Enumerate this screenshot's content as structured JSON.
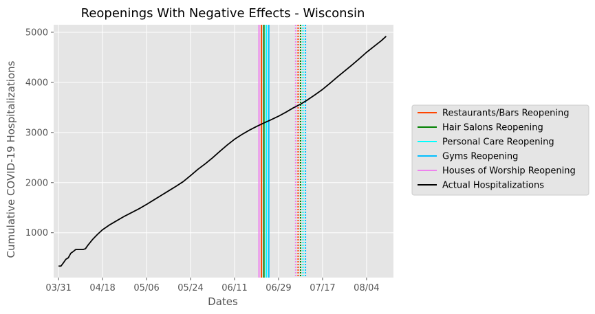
{
  "chart_data": {
    "type": "line",
    "title": "Reopenings With Negative Effects - Wisconsin",
    "xlabel": "Dates",
    "ylabel": "Cumulative COVID-19 Hospitalizations",
    "x_ticks": [
      "03/31",
      "04/18",
      "05/06",
      "05/24",
      "06/11",
      "06/29",
      "07/17",
      "08/04"
    ],
    "y_ticks": [
      1000,
      2000,
      3000,
      4000,
      5000
    ],
    "xlim": [
      "2020-03-29",
      "2020-08-15"
    ],
    "ylim": [
      105,
      5150
    ],
    "grid": true,
    "legend_position": "outside-right",
    "series": [
      {
        "name": "Actual Hospitalizations",
        "color": "#000000",
        "points": [
          [
            "2020-03-31",
            335
          ],
          [
            "2020-04-01",
            335
          ],
          [
            "2020-04-02",
            400
          ],
          [
            "2020-04-03",
            470
          ],
          [
            "2020-04-04",
            500
          ],
          [
            "2020-04-05",
            590
          ],
          [
            "2020-04-06",
            625
          ],
          [
            "2020-04-07",
            665
          ],
          [
            "2020-04-08",
            665
          ],
          [
            "2020-04-09",
            665
          ],
          [
            "2020-04-10",
            665
          ],
          [
            "2020-04-11",
            680
          ],
          [
            "2020-04-12",
            750
          ],
          [
            "2020-04-13",
            810
          ],
          [
            "2020-04-14",
            870
          ],
          [
            "2020-04-15",
            920
          ],
          [
            "2020-04-16",
            970
          ],
          [
            "2020-04-17",
            1015
          ],
          [
            "2020-04-18",
            1060
          ],
          [
            "2020-04-21",
            1160
          ],
          [
            "2020-04-24",
            1245
          ],
          [
            "2020-04-27",
            1330
          ],
          [
            "2020-04-30",
            1405
          ],
          [
            "2020-05-03",
            1480
          ],
          [
            "2020-05-06",
            1565
          ],
          [
            "2020-05-09",
            1655
          ],
          [
            "2020-05-12",
            1745
          ],
          [
            "2020-05-15",
            1835
          ],
          [
            "2020-05-18",
            1925
          ],
          [
            "2020-05-21",
            2020
          ],
          [
            "2020-05-24",
            2140
          ],
          [
            "2020-05-27",
            2265
          ],
          [
            "2020-05-30",
            2375
          ],
          [
            "2020-06-02",
            2495
          ],
          [
            "2020-06-05",
            2625
          ],
          [
            "2020-06-08",
            2750
          ],
          [
            "2020-06-11",
            2865
          ],
          [
            "2020-06-14",
            2960
          ],
          [
            "2020-06-17",
            3045
          ],
          [
            "2020-06-20",
            3120
          ],
          [
            "2020-06-23",
            3190
          ],
          [
            "2020-06-26",
            3255
          ],
          [
            "2020-06-29",
            3325
          ],
          [
            "2020-07-02",
            3405
          ],
          [
            "2020-07-05",
            3490
          ],
          [
            "2020-07-08",
            3565
          ],
          [
            "2020-07-11",
            3655
          ],
          [
            "2020-07-14",
            3755
          ],
          [
            "2020-07-17",
            3860
          ],
          [
            "2020-07-20",
            3980
          ],
          [
            "2020-07-23",
            4105
          ],
          [
            "2020-07-26",
            4225
          ],
          [
            "2020-07-29",
            4345
          ],
          [
            "2020-08-01",
            4470
          ],
          [
            "2020-08-04",
            4600
          ],
          [
            "2020-08-07",
            4715
          ],
          [
            "2020-08-10",
            4830
          ],
          [
            "2020-08-12",
            4920
          ]
        ]
      }
    ],
    "reopenings": [
      {
        "name": "Restaurants/Bars Reopening",
        "color": "#ff4500",
        "date": "2020-06-22",
        "dotted_date": "2020-07-07"
      },
      {
        "name": "Hair Salons Reopening",
        "color": "#008000",
        "date": "2020-06-23",
        "dotted_date": "2020-07-08"
      },
      {
        "name": "Personal Care Reopening",
        "color": "#00ffff",
        "date": "2020-06-24",
        "dotted_date": "2020-07-09"
      },
      {
        "name": "Gyms Reopening",
        "color": "#00bfff",
        "date": "2020-06-25",
        "dotted_date": "2020-07-10"
      },
      {
        "name": "Houses of Worship Reopening",
        "color": "#ee82ee",
        "date": "2020-06-21",
        "dotted_date": "2020-07-06"
      }
    ],
    "legend": [
      {
        "label": "Restaurants/Bars Reopening",
        "color": "#ff4500"
      },
      {
        "label": "Hair Salons Reopening",
        "color": "#008000"
      },
      {
        "label": "Personal Care Reopening",
        "color": "#00ffff"
      },
      {
        "label": "Gyms Reopening",
        "color": "#00bfff"
      },
      {
        "label": "Houses of Worship Reopening",
        "color": "#ee82ee"
      },
      {
        "label": "Actual Hospitalizations",
        "color": "#000000"
      }
    ]
  }
}
